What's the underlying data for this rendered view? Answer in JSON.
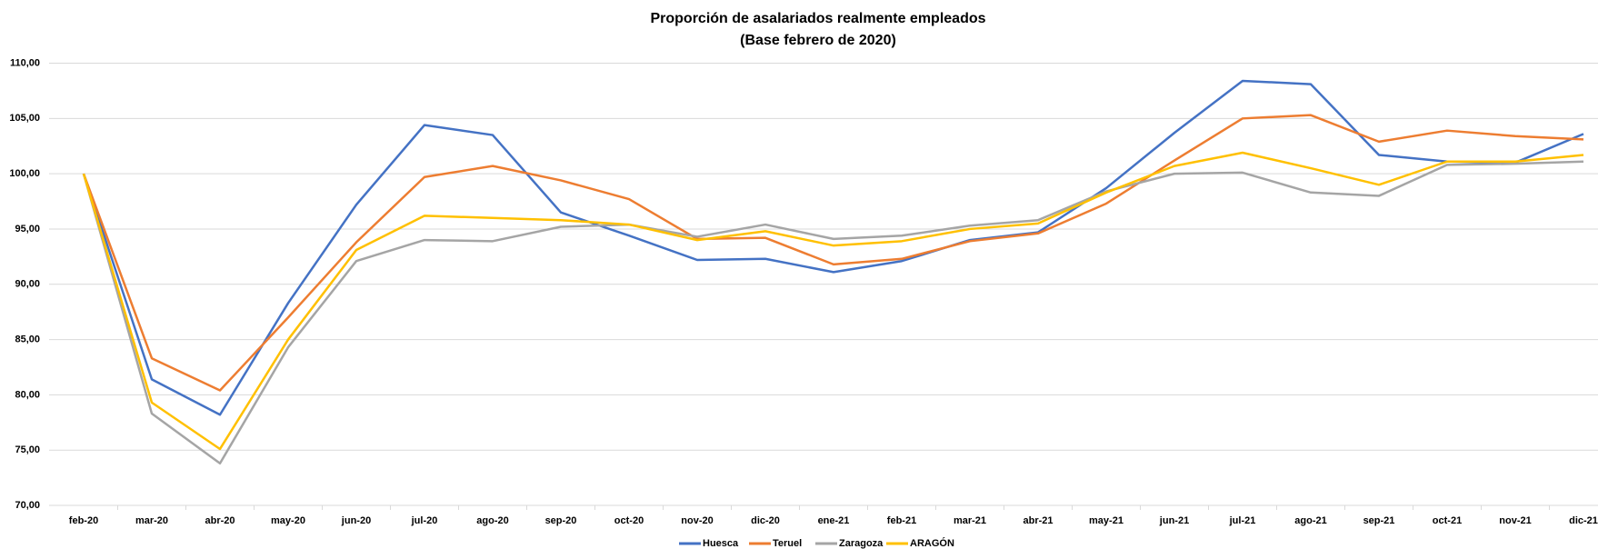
{
  "chart_data": {
    "type": "line",
    "title": "Proporción de asalariados realmente empleados",
    "subtitle": "(Base febrero de 2020)",
    "categories": [
      "feb-20",
      "mar-20",
      "abr-20",
      "may-20",
      "jun-20",
      "jul-20",
      "ago-20",
      "sep-20",
      "oct-20",
      "nov-20",
      "dic-20",
      "ene-21",
      "feb-21",
      "mar-21",
      "abr-21",
      "may-21",
      "jun-21",
      "jul-21",
      "ago-21",
      "sep-21",
      "oct-21",
      "nov-21",
      "dic-21"
    ],
    "series": [
      {
        "name": "Huesca",
        "color": "#4472c4",
        "values": [
          100,
          81.4,
          78.2,
          88.3,
          97.2,
          104.4,
          103.5,
          96.5,
          94.4,
          92.2,
          92.3,
          91.1,
          92.1,
          94.0,
          94.7,
          98.7,
          103.7,
          108.4,
          108.1,
          101.7,
          101.1,
          101.0,
          103.6
        ]
      },
      {
        "name": "Teruel",
        "color": "#ed7d31",
        "values": [
          100,
          83.3,
          80.4,
          87.0,
          93.8,
          99.7,
          100.7,
          99.4,
          97.7,
          94.1,
          94.2,
          91.8,
          92.3,
          93.9,
          94.6,
          97.3,
          101.2,
          105.0,
          105.3,
          102.9,
          103.9,
          103.4,
          103.1
        ]
      },
      {
        "name": "Zaragoza",
        "color": "#a5a5a5",
        "values": [
          100,
          78.3,
          73.8,
          84.3,
          92.1,
          94.0,
          93.9,
          95.2,
          95.4,
          94.3,
          95.4,
          94.1,
          94.4,
          95.3,
          95.8,
          98.4,
          100.0,
          100.1,
          98.3,
          98.0,
          100.8,
          100.9,
          101.1
        ]
      },
      {
        "name": "ARAGÓN",
        "color": "#ffc000",
        "values": [
          100,
          79.3,
          75.1,
          85.0,
          93.1,
          96.2,
          96.0,
          95.8,
          95.4,
          94.0,
          94.8,
          93.5,
          93.9,
          95.0,
          95.5,
          98.3,
          100.7,
          101.9,
          100.5,
          99.0,
          101.1,
          101.1,
          101.7
        ]
      }
    ],
    "ylim": [
      70,
      110
    ],
    "yticks": [
      {
        "value": 70,
        "label": "70,00"
      },
      {
        "value": 75,
        "label": "75,00"
      },
      {
        "value": 80,
        "label": "80,00"
      },
      {
        "value": 85,
        "label": "85,00"
      },
      {
        "value": 90,
        "label": "90,00"
      },
      {
        "value": 95,
        "label": "95,00"
      },
      {
        "value": 100,
        "label": "100,00"
      },
      {
        "value": 105,
        "label": "105,00"
      },
      {
        "value": 110,
        "label": "110,00"
      }
    ],
    "grid": true,
    "legend": "bottom"
  }
}
